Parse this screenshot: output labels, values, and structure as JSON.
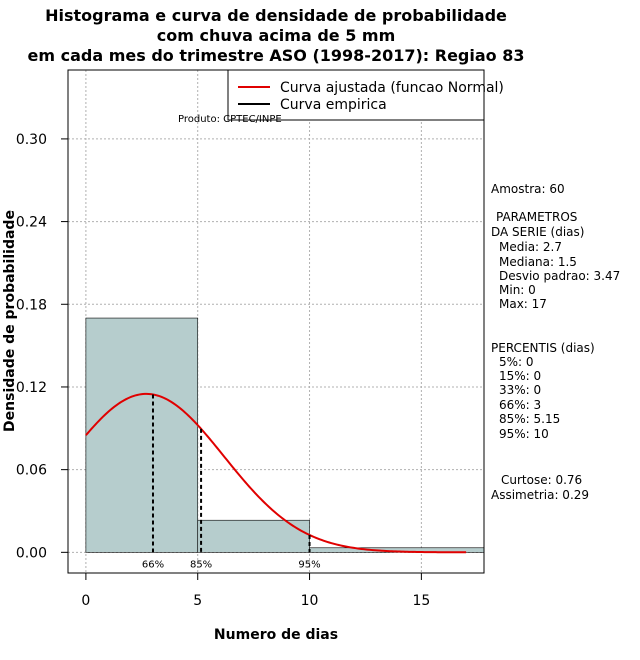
{
  "chart_data": {
    "type": "bar",
    "title": [
      "Histograma e curva de densidade de probabilidade",
      "com chuva acima de 5 mm",
      "em cada mes do trimestre ASO (1998-2017): Regiao 83"
    ],
    "xlabel": "Numero de dias",
    "ylabel": "Densidade de probabilidade",
    "xlim": [
      -0.8,
      17.8
    ],
    "ylim": [
      -0.015,
      0.35
    ],
    "x_ticks": [
      0,
      5,
      10,
      15
    ],
    "y_ticks": [
      0.0,
      0.06,
      0.12,
      0.18,
      0.24,
      0.3
    ],
    "y_tick_labels": [
      "0.00",
      "0.06",
      "0.12",
      "0.18",
      "0.24",
      "0.30"
    ],
    "grid": true,
    "bins": [
      {
        "start": 0,
        "end": 5,
        "density": 0.17
      },
      {
        "start": 5,
        "end": 10,
        "density": 0.0233
      },
      {
        "start": 10,
        "end": 17.8,
        "density": 0.0033
      }
    ],
    "normal_curve": {
      "mean": 2.7,
      "sd": 3.47,
      "range": [
        0,
        17
      ],
      "color": "#e00000"
    },
    "percentile_markers": [
      {
        "label": "66%",
        "x": 3
      },
      {
        "label": "85%",
        "x": 5.15
      },
      {
        "label": "95%",
        "x": 10
      }
    ],
    "legend": {
      "position": "top-right",
      "entries": [
        {
          "label": "Curva ajustada (funcao Normal)",
          "color": "#e00000"
        },
        {
          "label": "Curva empirica",
          "color": "#000000"
        }
      ]
    },
    "product_label": "Produto: CPTEC/INPE",
    "bar_color": "#b6cdcd"
  },
  "stats": {
    "sample": "Amostra: 60",
    "params_title_1": "PARAMETROS",
    "params_title_2": "DA SERIE (dias)",
    "params": [
      "Media: 2.7",
      "Mediana: 1.5",
      "Desvio padrao: 3.47",
      "Min: 0",
      "Max: 17"
    ],
    "percentis_title": "PERCENTIS (dias)",
    "percentis": [
      "5%: 0",
      "15%: 0",
      "33%: 0",
      "66%: 3",
      "85%: 5.15",
      "95%: 10"
    ],
    "curtose": "Curtose: 0.76",
    "assimetria": "Assimetria: 0.29"
  }
}
